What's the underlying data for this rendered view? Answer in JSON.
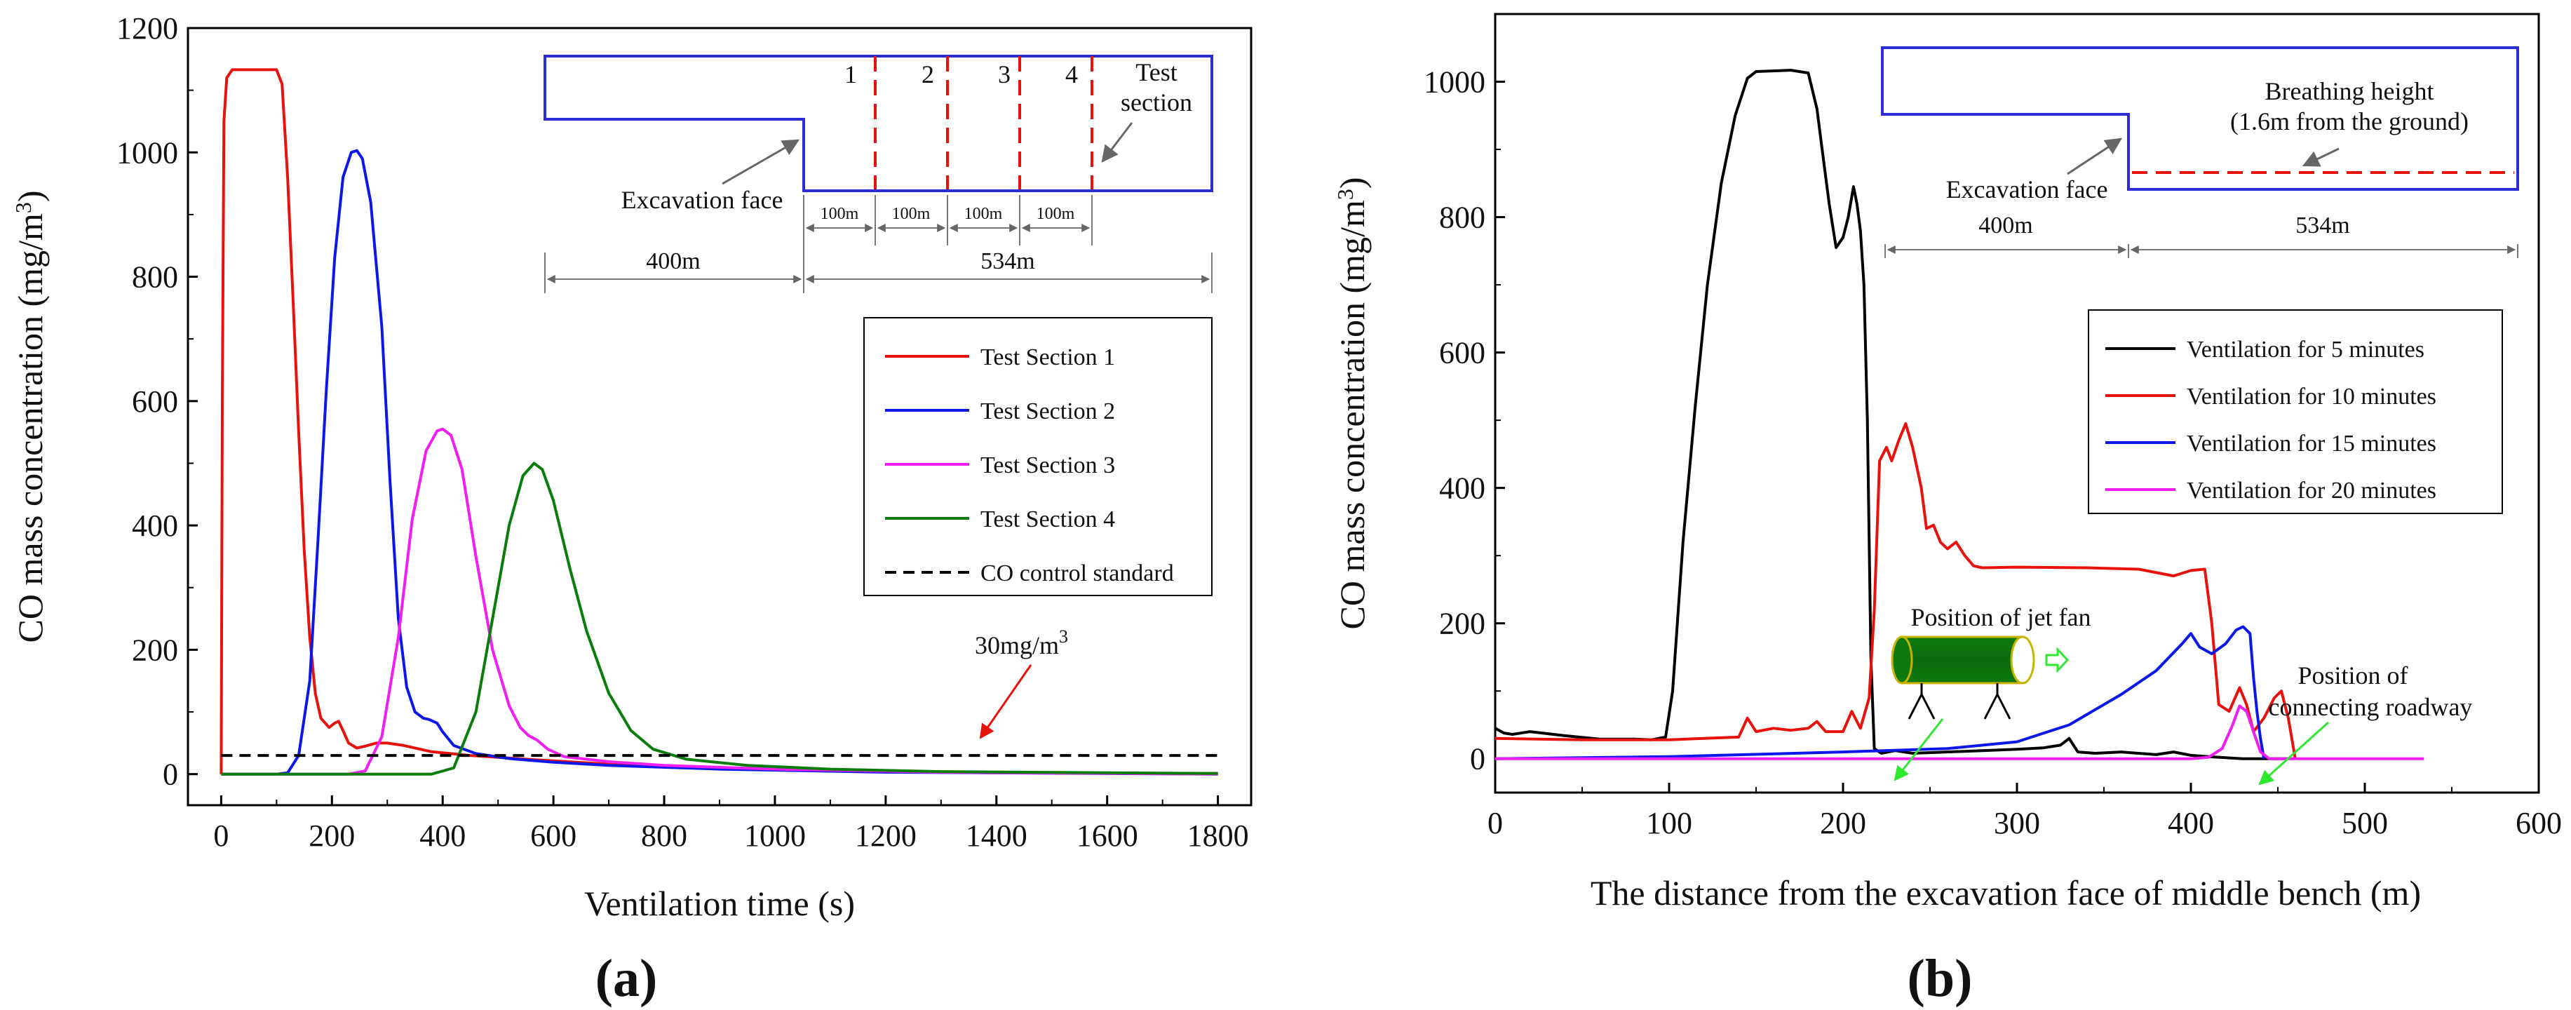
{
  "chart_data": [
    {
      "id": "a",
      "type": "line",
      "panel_label": "(a)",
      "xlabel": "Ventilation time (s)",
      "ylabel": "CO mass concentration (mg/m³)",
      "xlim": [
        -60,
        1860
      ],
      "ylim": [
        -50,
        1200
      ],
      "xticks": [
        0,
        200,
        400,
        600,
        800,
        1000,
        1200,
        1400,
        1600,
        1800
      ],
      "yticks": [
        0,
        200,
        400,
        600,
        800,
        1000,
        1200
      ],
      "series": [
        {
          "name": "Test Section 1",
          "color": "#e8120c",
          "points": [
            [
              0,
              0
            ],
            [
              2,
              600
            ],
            [
              5,
              1050
            ],
            [
              10,
              1120
            ],
            [
              20,
              1133
            ],
            [
              60,
              1133
            ],
            [
              100,
              1133
            ],
            [
              110,
              1110
            ],
            [
              120,
              960
            ],
            [
              130,
              760
            ],
            [
              140,
              550
            ],
            [
              150,
              360
            ],
            [
              160,
              220
            ],
            [
              170,
              130
            ],
            [
              180,
              90
            ],
            [
              195,
              75
            ],
            [
              205,
              82
            ],
            [
              212,
              85
            ],
            [
              220,
              70
            ],
            [
              230,
              50
            ],
            [
              245,
              42
            ],
            [
              260,
              45
            ],
            [
              280,
              50
            ],
            [
              300,
              50
            ],
            [
              330,
              46
            ],
            [
              380,
              36
            ],
            [
              450,
              30
            ],
            [
              550,
              24
            ],
            [
              700,
              16
            ],
            [
              900,
              9
            ],
            [
              1100,
              5
            ],
            [
              1400,
              2
            ],
            [
              1800,
              1
            ]
          ]
        },
        {
          "name": "Test Section 2",
          "color": "#0b18e8",
          "points": [
            [
              0,
              0
            ],
            [
              100,
              0
            ],
            [
              120,
              2
            ],
            [
              140,
              30
            ],
            [
              160,
              150
            ],
            [
              175,
              380
            ],
            [
              190,
              620
            ],
            [
              205,
              830
            ],
            [
              220,
              960
            ],
            [
              235,
              1000
            ],
            [
              245,
              1003
            ],
            [
              255,
              990
            ],
            [
              270,
              920
            ],
            [
              290,
              720
            ],
            [
              305,
              470
            ],
            [
              320,
              250
            ],
            [
              335,
              140
            ],
            [
              350,
              100
            ],
            [
              365,
              90
            ],
            [
              375,
              88
            ],
            [
              390,
              82
            ],
            [
              400,
              68
            ],
            [
              420,
              46
            ],
            [
              460,
              33
            ],
            [
              520,
              25
            ],
            [
              600,
              19
            ],
            [
              700,
              14
            ],
            [
              900,
              8
            ],
            [
              1200,
              3
            ],
            [
              1800,
              0
            ]
          ]
        },
        {
          "name": "Test Section 3",
          "color": "#f01ef0",
          "points": [
            [
              0,
              0
            ],
            [
              230,
              0
            ],
            [
              260,
              5
            ],
            [
              290,
              60
            ],
            [
              320,
              220
            ],
            [
              345,
              410
            ],
            [
              370,
              520
            ],
            [
              390,
              552
            ],
            [
              400,
              555
            ],
            [
              415,
              545
            ],
            [
              435,
              490
            ],
            [
              460,
              350
            ],
            [
              490,
              200
            ],
            [
              520,
              110
            ],
            [
              540,
              75
            ],
            [
              555,
              62
            ],
            [
              570,
              55
            ],
            [
              590,
              40
            ],
            [
              620,
              28
            ],
            [
              700,
              20
            ],
            [
              800,
              14
            ],
            [
              1000,
              8
            ],
            [
              1300,
              3
            ],
            [
              1800,
              0
            ]
          ]
        },
        {
          "name": "Test Section 4",
          "color": "#0b7d0b",
          "points": [
            [
              0,
              0
            ],
            [
              380,
              0
            ],
            [
              420,
              10
            ],
            [
              460,
              100
            ],
            [
              490,
              250
            ],
            [
              520,
              400
            ],
            [
              545,
              480
            ],
            [
              565,
              500
            ],
            [
              580,
              490
            ],
            [
              600,
              440
            ],
            [
              630,
              330
            ],
            [
              660,
              230
            ],
            [
              700,
              130
            ],
            [
              740,
              70
            ],
            [
              780,
              40
            ],
            [
              840,
              24
            ],
            [
              950,
              14
            ],
            [
              1100,
              8
            ],
            [
              1300,
              4
            ],
            [
              1800,
              1
            ]
          ]
        }
      ],
      "reference_line": {
        "name": "CO control standard",
        "value": 30,
        "x": [
          0,
          1800
        ]
      },
      "annotation": {
        "base": "30mg/m",
        "sup": "3"
      },
      "legend": "right-middle",
      "inset": {
        "labels": {
          "excavation_face": "Excavation face",
          "test_section_1": "Test",
          "test_section_2": "section"
        },
        "section_numbers": [
          "1",
          "2",
          "3",
          "4"
        ],
        "dims": {
          "d1": "400m",
          "d2": "534m",
          "s1": "100m",
          "s2": "100m",
          "s3": "100m",
          "s4": "100m"
        }
      }
    },
    {
      "id": "b",
      "type": "line",
      "panel_label": "(b)",
      "xlabel": "The distance from the excavation face of middle bench (m)",
      "ylabel": "CO mass concentration (mg/m³)",
      "xlim": [
        0,
        600
      ],
      "ylim": [
        -50,
        1100
      ],
      "xticks": [
        0,
        100,
        200,
        300,
        400,
        500,
        600
      ],
      "yticks": [
        0,
        200,
        400,
        600,
        800,
        1000
      ],
      "series": [
        {
          "name": "Ventilation for 5 minutes",
          "color": "#000000",
          "points": [
            [
              0,
              45
            ],
            [
              5,
              38
            ],
            [
              10,
              36
            ],
            [
              20,
              40
            ],
            [
              40,
              34
            ],
            [
              60,
              29
            ],
            [
              80,
              29
            ],
            [
              90,
              28
            ],
            [
              98,
              32
            ],
            [
              102,
              100
            ],
            [
              108,
              320
            ],
            [
              115,
              520
            ],
            [
              122,
              700
            ],
            [
              130,
              850
            ],
            [
              138,
              950
            ],
            [
              145,
              1005
            ],
            [
              150,
              1015
            ],
            [
              170,
              1017
            ],
            [
              180,
              1013
            ],
            [
              185,
              960
            ],
            [
              188,
              900
            ],
            [
              192,
              820
            ],
            [
              196,
              755
            ],
            [
              200,
              770
            ],
            [
              203,
              800
            ],
            [
              206,
              845
            ],
            [
              208,
              820
            ],
            [
              210,
              780
            ],
            [
              212,
              700
            ],
            [
              214,
              500
            ],
            [
              216,
              150
            ],
            [
              218,
              15
            ],
            [
              222,
              8
            ],
            [
              230,
              12
            ],
            [
              240,
              8
            ],
            [
              260,
              10
            ],
            [
              280,
              12
            ],
            [
              300,
              14
            ],
            [
              315,
              16
            ],
            [
              325,
              20
            ],
            [
              330,
              30
            ],
            [
              335,
              10
            ],
            [
              345,
              8
            ],
            [
              360,
              10
            ],
            [
              370,
              8
            ],
            [
              380,
              6
            ],
            [
              390,
              10
            ],
            [
              400,
              5
            ],
            [
              410,
              3
            ],
            [
              430,
              0
            ],
            [
              455,
              0
            ]
          ]
        },
        {
          "name": "Ventilation for 10 minutes",
          "color": "#e8120c",
          "points": [
            [
              0,
              30
            ],
            [
              50,
              28
            ],
            [
              100,
              28
            ],
            [
              140,
              32
            ],
            [
              145,
              60
            ],
            [
              150,
              40
            ],
            [
              160,
              45
            ],
            [
              170,
              42
            ],
            [
              180,
              45
            ],
            [
              185,
              55
            ],
            [
              190,
              40
            ],
            [
              200,
              40
            ],
            [
              205,
              70
            ],
            [
              210,
              45
            ],
            [
              215,
              90
            ],
            [
              218,
              220
            ],
            [
              221,
              440
            ],
            [
              225,
              460
            ],
            [
              228,
              440
            ],
            [
              232,
              470
            ],
            [
              236,
              495
            ],
            [
              240,
              460
            ],
            [
              245,
              400
            ],
            [
              248,
              340
            ],
            [
              252,
              345
            ],
            [
              256,
              320
            ],
            [
              260,
              310
            ],
            [
              265,
              320
            ],
            [
              270,
              300
            ],
            [
              275,
              285
            ],
            [
              280,
              282
            ],
            [
              300,
              283
            ],
            [
              340,
              282
            ],
            [
              370,
              280
            ],
            [
              390,
              270
            ],
            [
              400,
              278
            ],
            [
              408,
              280
            ],
            [
              412,
              200
            ],
            [
              416,
              80
            ],
            [
              422,
              70
            ],
            [
              428,
              105
            ],
            [
              432,
              80
            ],
            [
              436,
              40
            ],
            [
              442,
              60
            ],
            [
              448,
              90
            ],
            [
              452,
              100
            ],
            [
              456,
              60
            ],
            [
              460,
              0
            ]
          ]
        },
        {
          "name": "Ventilation for 15 minutes",
          "color": "#0b18e8",
          "points": [
            [
              0,
              0
            ],
            [
              100,
              3
            ],
            [
              200,
              10
            ],
            [
              260,
              15
            ],
            [
              300,
              25
            ],
            [
              330,
              50
            ],
            [
              360,
              95
            ],
            [
              380,
              130
            ],
            [
              395,
              170
            ],
            [
              400,
              185
            ],
            [
              405,
              165
            ],
            [
              412,
              155
            ],
            [
              420,
              170
            ],
            [
              426,
              190
            ],
            [
              430,
              195
            ],
            [
              434,
              185
            ],
            [
              436,
              120
            ],
            [
              438,
              70
            ],
            [
              440,
              30
            ],
            [
              442,
              0
            ]
          ]
        },
        {
          "name": "Ventilation for 20 minutes",
          "color": "#f01ef0",
          "points": [
            [
              0,
              0
            ],
            [
              400,
              0
            ],
            [
              410,
              2
            ],
            [
              418,
              15
            ],
            [
              424,
              50
            ],
            [
              428,
              78
            ],
            [
              432,
              70
            ],
            [
              436,
              40
            ],
            [
              440,
              10
            ],
            [
              445,
              0
            ],
            [
              534,
              0
            ]
          ]
        }
      ],
      "legend": "right-middle",
      "inset": {
        "labels": {
          "breathing_1": "Breathing height",
          "breathing_2": "(1.6m from the ground)",
          "excavation_face": "Excavation face"
        },
        "dims": {
          "d1": "400m",
          "d2": "534m"
        }
      },
      "annotations": {
        "jet_fan": "Position of jet fan",
        "connecting_1": "Position of",
        "connecting_2": "connecting roadway"
      }
    }
  ]
}
